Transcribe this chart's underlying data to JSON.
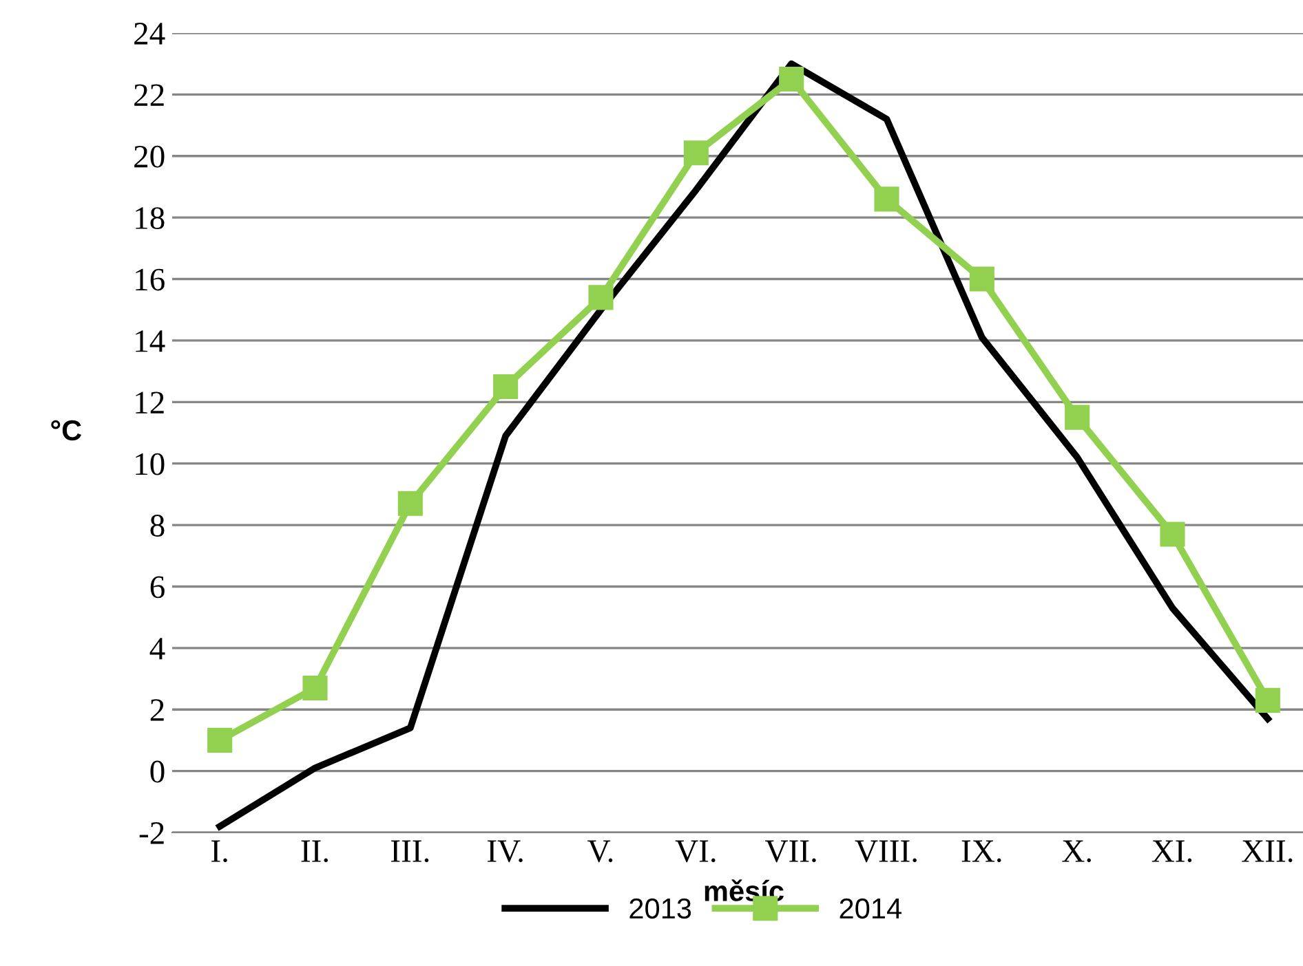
{
  "chart_data": {
    "type": "line",
    "xlabel": "měsíc",
    "ylabel": "°C",
    "categories": [
      "I.",
      "II.",
      "III.",
      "IV.",
      "V.",
      "VI.",
      "VII.",
      "VIII.",
      "IX.",
      "X.",
      "XI.",
      "XII."
    ],
    "series": [
      {
        "name": "2013",
        "color": "#000000",
        "marker": "none",
        "values": [
          -1.8,
          0.1,
          1.4,
          10.9,
          15.0,
          18.9,
          23.0,
          21.2,
          14.1,
          10.2,
          5.3,
          1.7
        ]
      },
      {
        "name": "2014",
        "color": "#92d050",
        "marker": "square",
        "values": [
          1.0,
          2.7,
          8.7,
          12.5,
          15.4,
          20.1,
          22.5,
          18.6,
          16.0,
          11.5,
          7.7,
          2.3
        ]
      }
    ],
    "ylim": [
      -2,
      24
    ],
    "yticks": [
      -2,
      0,
      2,
      4,
      6,
      8,
      10,
      12,
      14,
      16,
      18,
      20,
      22,
      24
    ],
    "grid": "y",
    "legend": "bottom"
  }
}
